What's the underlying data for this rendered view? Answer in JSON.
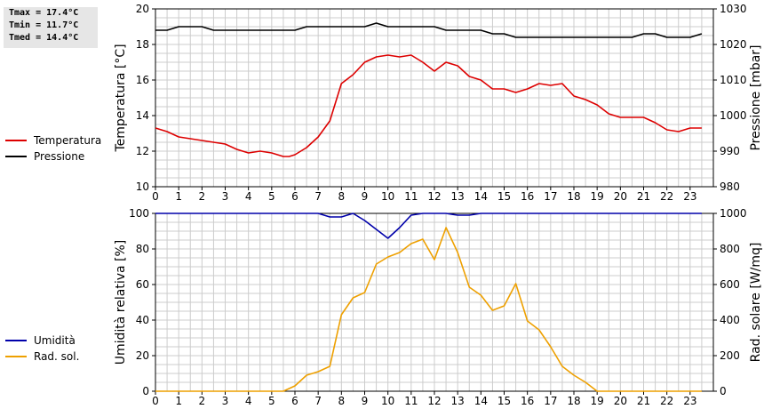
{
  "stats": {
    "tmax": "Tmax = 17.4°C",
    "tmin": "Tmin = 11.7°C",
    "tmed": "Tmed = 14.4°C"
  },
  "chart_data": [
    {
      "type": "line",
      "x_label": "",
      "x_ticks": [
        "0",
        "1",
        "2",
        "3",
        "4",
        "5",
        "6",
        "7",
        "8",
        "9",
        "10",
        "11",
        "12",
        "13",
        "14",
        "15",
        "16",
        "17",
        "18",
        "19",
        "20",
        "21",
        "22",
        "23"
      ],
      "x_range": [
        0,
        24
      ],
      "grid": true,
      "legend_position": "left",
      "left_axis": {
        "label": "Temperatura [°C]",
        "range": [
          10,
          20
        ],
        "ticks": [
          "10",
          "12",
          "14",
          "16",
          "18",
          "20"
        ]
      },
      "right_axis": {
        "label": "Pressione [mbar]",
        "range": [
          980,
          1030
        ],
        "ticks": [
          "980",
          "990",
          "1000",
          "1010",
          "1020",
          "1030"
        ]
      },
      "series": [
        {
          "name": "Temperatura",
          "axis": "left",
          "color": "#dd0000",
          "x": [
            0,
            0.5,
            1,
            1.5,
            2,
            2.5,
            3,
            3.5,
            4,
            4.5,
            5,
            5.5,
            5.75,
            6,
            6.5,
            7,
            7.5,
            8,
            8.5,
            9,
            9.5,
            10,
            10.5,
            11,
            11.5,
            12,
            12.5,
            13,
            13.5,
            14,
            14.5,
            15,
            15.5,
            16,
            16.5,
            17,
            17.5,
            18,
            18.5,
            19,
            19.5,
            20,
            20.5,
            21,
            21.5,
            22,
            22.5,
            23,
            23.5
          ],
          "y": [
            13.3,
            13.1,
            12.8,
            12.7,
            12.6,
            12.5,
            12.4,
            12.1,
            11.9,
            12.0,
            11.9,
            11.7,
            11.7,
            11.8,
            12.2,
            12.8,
            13.7,
            15.8,
            16.3,
            17.0,
            17.3,
            17.4,
            17.3,
            17.4,
            17.0,
            16.5,
            17.0,
            16.8,
            16.2,
            16.0,
            15.5,
            15.5,
            15.3,
            15.5,
            15.8,
            15.7,
            15.8,
            15.1,
            14.9,
            14.6,
            14.1,
            13.9,
            13.9,
            13.9,
            13.6,
            13.2,
            13.1,
            13.3,
            13.3
          ]
        },
        {
          "name": "Pressione",
          "axis": "right",
          "color": "#000000",
          "x": [
            0,
            0.5,
            1,
            1.5,
            2,
            2.5,
            3,
            3.5,
            4,
            4.5,
            5,
            5.5,
            6,
            6.5,
            7,
            7.5,
            8,
            8.5,
            9,
            9.5,
            10,
            10.5,
            11,
            11.5,
            12,
            12.5,
            13,
            13.5,
            14,
            14.5,
            15,
            15.5,
            16,
            16.5,
            17,
            17.5,
            18,
            18.5,
            19,
            19.5,
            20,
            20.5,
            21,
            21.5,
            22,
            22.5,
            23,
            23.5
          ],
          "y": [
            1024,
            1024,
            1025,
            1025,
            1025,
            1024,
            1024,
            1024,
            1024,
            1024,
            1024,
            1024,
            1024,
            1025,
            1025,
            1025,
            1025,
            1025,
            1025,
            1026,
            1025,
            1025,
            1025,
            1025,
            1025,
            1024,
            1024,
            1024,
            1024,
            1023,
            1023,
            1022,
            1022,
            1022,
            1022,
            1022,
            1022,
            1022,
            1022,
            1022,
            1022,
            1022,
            1023,
            1023,
            1022,
            1022,
            1022,
            1023
          ]
        }
      ]
    },
    {
      "type": "line",
      "x_label": "",
      "x_ticks": [
        "0",
        "1",
        "2",
        "3",
        "4",
        "5",
        "6",
        "7",
        "8",
        "9",
        "10",
        "11",
        "12",
        "13",
        "14",
        "15",
        "16",
        "17",
        "18",
        "19",
        "20",
        "21",
        "22",
        "23"
      ],
      "x_range": [
        0,
        24
      ],
      "grid": true,
      "legend_position": "left",
      "left_axis": {
        "label": "Umidità relativa [%]",
        "range": [
          0,
          100
        ],
        "ticks": [
          "0",
          "20",
          "40",
          "60",
          "80",
          "100"
        ]
      },
      "right_axis": {
        "label": "Rad. solare [W/mq]",
        "range": [
          0,
          1000
        ],
        "ticks": [
          "0",
          "200",
          "400",
          "600",
          "800",
          "1000"
        ]
      },
      "series": [
        {
          "name": "Umidità",
          "axis": "left",
          "color": "#0000aa",
          "x": [
            0,
            0.5,
            1,
            1.5,
            2,
            2.5,
            3,
            3.5,
            4,
            4.5,
            5,
            5.5,
            6,
            6.5,
            7,
            7.5,
            8,
            8.5,
            9,
            9.5,
            10,
            10.5,
            11,
            11.5,
            12,
            12.5,
            13,
            13.5,
            14,
            14.5,
            15,
            15.5,
            16,
            16.5,
            17,
            17.5,
            18,
            18.5,
            19,
            19.5,
            20,
            20.5,
            21,
            21.5,
            22,
            22.5,
            23,
            23.5
          ],
          "y": [
            100,
            100,
            100,
            100,
            100,
            100,
            100,
            100,
            100,
            100,
            100,
            100,
            100,
            100,
            100,
            98,
            98,
            100,
            96,
            91,
            86,
            92,
            99,
            100,
            100,
            100,
            99,
            99,
            100,
            100,
            100,
            100,
            100,
            100,
            100,
            100,
            100,
            100,
            100,
            100,
            100,
            100,
            100,
            100,
            100,
            100,
            100,
            100
          ]
        },
        {
          "name": "Rad. sol.",
          "axis": "right",
          "color": "#eea000",
          "x": [
            0,
            0.5,
            1,
            1.5,
            2,
            2.5,
            3,
            3.5,
            4,
            4.5,
            5,
            5.5,
            6,
            6.5,
            7,
            7.5,
            8,
            8.5,
            9,
            9.5,
            10,
            10.5,
            11,
            11.5,
            12,
            12.5,
            13,
            13.5,
            14,
            14.5,
            15,
            15.5,
            16,
            16.5,
            17,
            17.5,
            18,
            18.5,
            19,
            19.5,
            20,
            20.5,
            21,
            21.5,
            22,
            22.5,
            23,
            23.5
          ],
          "y": [
            0,
            0,
            0,
            0,
            0,
            0,
            0,
            0,
            0,
            0,
            0,
            0,
            30,
            90,
            110,
            140,
            430,
            525,
            555,
            715,
            755,
            780,
            830,
            855,
            740,
            920,
            780,
            585,
            540,
            455,
            480,
            605,
            395,
            345,
            250,
            140,
            90,
            50,
            0,
            0,
            0,
            0,
            0,
            0,
            0,
            0,
            0,
            0
          ]
        }
      ]
    }
  ]
}
